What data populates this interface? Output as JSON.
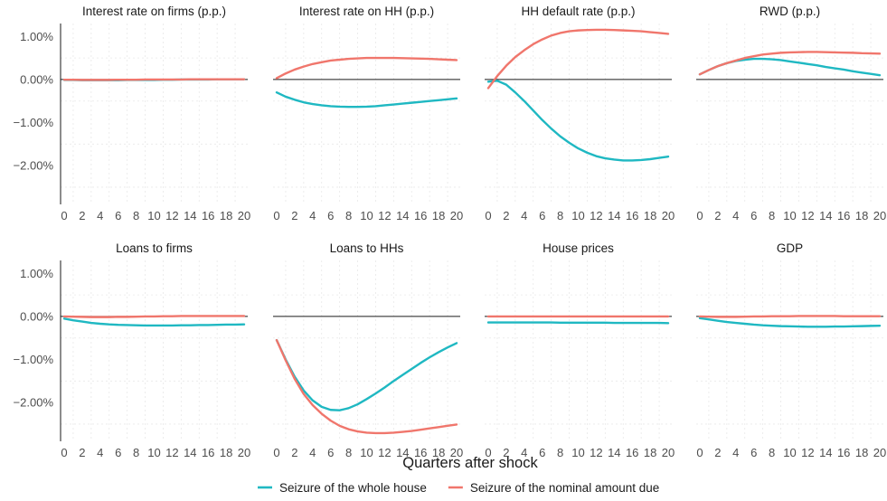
{
  "chart_data": {
    "type": "line",
    "xlabel": "Quarters after shock",
    "x": [
      0,
      1,
      2,
      3,
      4,
      5,
      6,
      7,
      8,
      9,
      10,
      11,
      12,
      13,
      14,
      15,
      16,
      17,
      18,
      19,
      20
    ],
    "x_ticks": [
      0,
      2,
      4,
      6,
      8,
      10,
      12,
      14,
      16,
      18,
      20
    ],
    "y_ticks": [
      1.0,
      0.0,
      -1.0,
      -2.0
    ],
    "y_tick_labels": [
      "1.00%",
      "0.00%",
      "−1.00%",
      "−2.00%"
    ],
    "ylim": [
      -2.9,
      1.3
    ],
    "grid": true,
    "legend_position": "bottom",
    "legend": [
      {
        "label": "Seizure of the whole house",
        "color": "#1fb8c2"
      },
      {
        "label": "Seizure of the nominal amount due",
        "color": "#f0766c"
      }
    ],
    "panels": [
      {
        "title": "Interest rate on firms (p.p.)",
        "series": [
          {
            "color": "#1fb8c2",
            "values": [
              -0.01,
              -0.01,
              -0.015,
              -0.015,
              -0.015,
              -0.015,
              -0.015,
              -0.01,
              -0.01,
              -0.01,
              -0.01,
              -0.005,
              -0.005,
              0,
              0,
              0,
              0,
              0.005,
              0.005,
              0.005,
              0.005
            ]
          },
          {
            "color": "#f0766c",
            "values": [
              -0.005,
              -0.005,
              -0.01,
              -0.01,
              -0.01,
              -0.01,
              -0.005,
              -0.005,
              -0.005,
              0,
              0,
              0,
              0,
              0,
              0.005,
              0.005,
              0.005,
              0.005,
              0.005,
              0.005,
              0.005
            ]
          }
        ]
      },
      {
        "title": "Interest rate on HH (p.p.)",
        "series": [
          {
            "color": "#1fb8c2",
            "values": [
              -0.3,
              -0.4,
              -0.47,
              -0.53,
              -0.57,
              -0.6,
              -0.62,
              -0.63,
              -0.635,
              -0.635,
              -0.63,
              -0.62,
              -0.6,
              -0.58,
              -0.56,
              -0.54,
              -0.52,
              -0.5,
              -0.48,
              -0.46,
              -0.44
            ]
          },
          {
            "color": "#f0766c",
            "values": [
              0.03,
              0.14,
              0.23,
              0.3,
              0.36,
              0.4,
              0.44,
              0.46,
              0.48,
              0.49,
              0.5,
              0.5,
              0.5,
              0.5,
              0.495,
              0.49,
              0.485,
              0.48,
              0.47,
              0.46,
              0.45
            ]
          }
        ]
      },
      {
        "title": "HH default rate (p.p.)",
        "series": [
          {
            "color": "#1fb8c2",
            "values": [
              -0.05,
              -0.03,
              -0.12,
              -0.3,
              -0.5,
              -0.72,
              -0.94,
              -1.14,
              -1.32,
              -1.47,
              -1.6,
              -1.7,
              -1.78,
              -1.83,
              -1.86,
              -1.88,
              -1.88,
              -1.87,
              -1.85,
              -1.82,
              -1.79
            ]
          },
          {
            "color": "#f0766c",
            "values": [
              -0.2,
              0.08,
              0.32,
              0.52,
              0.68,
              0.82,
              0.93,
              1.02,
              1.08,
              1.12,
              1.14,
              1.15,
              1.155,
              1.155,
              1.15,
              1.14,
              1.13,
              1.12,
              1.1,
              1.08,
              1.06
            ]
          }
        ]
      },
      {
        "title": "RWD (p.p.)",
        "series": [
          {
            "color": "#1fb8c2",
            "values": [
              0.12,
              0.22,
              0.31,
              0.38,
              0.43,
              0.46,
              0.48,
              0.48,
              0.47,
              0.45,
              0.42,
              0.39,
              0.36,
              0.33,
              0.29,
              0.26,
              0.23,
              0.19,
              0.16,
              0.13,
              0.1
            ]
          },
          {
            "color": "#f0766c",
            "values": [
              0.12,
              0.22,
              0.31,
              0.38,
              0.44,
              0.5,
              0.54,
              0.58,
              0.6,
              0.62,
              0.63,
              0.635,
              0.64,
              0.64,
              0.635,
              0.63,
              0.625,
              0.62,
              0.61,
              0.605,
              0.6
            ]
          }
        ]
      },
      {
        "title": "Loans to firms",
        "series": [
          {
            "color": "#1fb8c2",
            "values": [
              -0.05,
              -0.09,
              -0.12,
              -0.15,
              -0.17,
              -0.185,
              -0.195,
              -0.2,
              -0.205,
              -0.21,
              -0.21,
              -0.21,
              -0.21,
              -0.205,
              -0.205,
              -0.2,
              -0.2,
              -0.195,
              -0.19,
              -0.19,
              -0.185
            ]
          },
          {
            "color": "#f0766c",
            "values": [
              0,
              -0.005,
              -0.01,
              -0.015,
              -0.015,
              -0.015,
              -0.01,
              -0.01,
              -0.005,
              0,
              0,
              0.005,
              0.005,
              0.01,
              0.01,
              0.01,
              0.01,
              0.01,
              0.01,
              0.01,
              0.01
            ]
          }
        ]
      },
      {
        "title": "Loans to HHs",
        "series": [
          {
            "color": "#1fb8c2",
            "values": [
              -0.55,
              -1.0,
              -1.4,
              -1.72,
              -1.95,
              -2.1,
              -2.17,
              -2.18,
              -2.13,
              -2.04,
              -1.92,
              -1.79,
              -1.65,
              -1.5,
              -1.36,
              -1.22,
              -1.08,
              -0.95,
              -0.83,
              -0.72,
              -0.62
            ]
          },
          {
            "color": "#f0766c",
            "values": [
              -0.55,
              -1.02,
              -1.45,
              -1.8,
              -2.06,
              -2.26,
              -2.42,
              -2.54,
              -2.62,
              -2.67,
              -2.7,
              -2.71,
              -2.71,
              -2.7,
              -2.68,
              -2.66,
              -2.63,
              -2.6,
              -2.57,
              -2.54,
              -2.51
            ]
          }
        ]
      },
      {
        "title": "House prices",
        "series": [
          {
            "color": "#1fb8c2",
            "values": [
              -0.14,
              -0.14,
              -0.14,
              -0.14,
              -0.14,
              -0.14,
              -0.14,
              -0.14,
              -0.145,
              -0.145,
              -0.145,
              -0.145,
              -0.145,
              -0.145,
              -0.15,
              -0.15,
              -0.15,
              -0.15,
              -0.15,
              -0.15,
              -0.155
            ]
          },
          {
            "color": "#f0766c",
            "values": [
              0,
              0,
              0,
              0,
              0,
              0,
              0,
              0,
              0,
              0,
              0,
              0,
              0,
              0,
              0,
              0,
              0,
              0,
              0,
              0,
              0
            ]
          }
        ]
      },
      {
        "title": "GDP",
        "series": [
          {
            "color": "#1fb8c2",
            "values": [
              -0.04,
              -0.07,
              -0.1,
              -0.13,
              -0.15,
              -0.17,
              -0.19,
              -0.205,
              -0.215,
              -0.225,
              -0.23,
              -0.235,
              -0.24,
              -0.24,
              -0.24,
              -0.235,
              -0.235,
              -0.23,
              -0.225,
              -0.22,
              -0.215
            ]
          },
          {
            "color": "#f0766c",
            "values": [
              0,
              -0.005,
              -0.01,
              -0.01,
              -0.01,
              -0.005,
              0,
              0,
              0.005,
              0.005,
              0.005,
              0.01,
              0.01,
              0.01,
              0.01,
              0.01,
              0.005,
              0.005,
              0.005,
              0.005,
              0.005
            ]
          }
        ]
      }
    ]
  }
}
